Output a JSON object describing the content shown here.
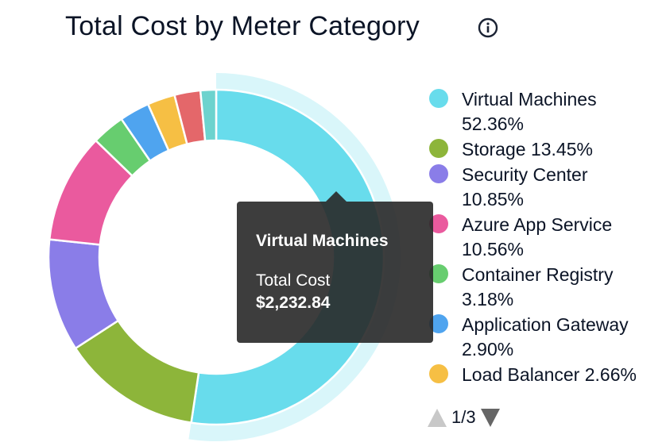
{
  "title": "Total Cost by Meter Category",
  "info_icon": "info-circle-icon",
  "chart_data": {
    "type": "pie",
    "donut": true,
    "title": "Total Cost by Meter Category",
    "unit": "%",
    "slices": [
      {
        "name": "Virtual Machines",
        "value": 52.36,
        "label": "Virtual Machines 52.36%",
        "color": "#68dcec"
      },
      {
        "name": "Storage",
        "value": 13.45,
        "label": "Storage 13.45%",
        "color": "#8db53a"
      },
      {
        "name": "Security Center",
        "value": 10.85,
        "label": "Security Center 10.85%",
        "color": "#8a7de8"
      },
      {
        "name": "Azure App Service",
        "value": 10.56,
        "label": "Azure App Service 10.56%",
        "color": "#ea5a9e"
      },
      {
        "name": "Container Registry",
        "value": 3.18,
        "label": "Container Registry 3.18%",
        "color": "#67cd6f"
      },
      {
        "name": "Application Gateway",
        "value": 2.9,
        "label": "Application Gateway 2.90%",
        "color": "#4fa4ef"
      },
      {
        "name": "Load Balancer",
        "value": 2.66,
        "label": "Load Balancer 2.66%",
        "color": "#f6bf44"
      },
      {
        "value": 2.5,
        "color": "#e4676a"
      },
      {
        "value": 1.5,
        "color": "#6dd3ce"
      }
    ],
    "highlighted": "Virtual Machines",
    "legend_position": "right"
  },
  "legend": {
    "page": "1/3"
  },
  "tooltip": {
    "title": "Virtual Machines",
    "label": "Total Cost",
    "value": "$2,232.84"
  }
}
